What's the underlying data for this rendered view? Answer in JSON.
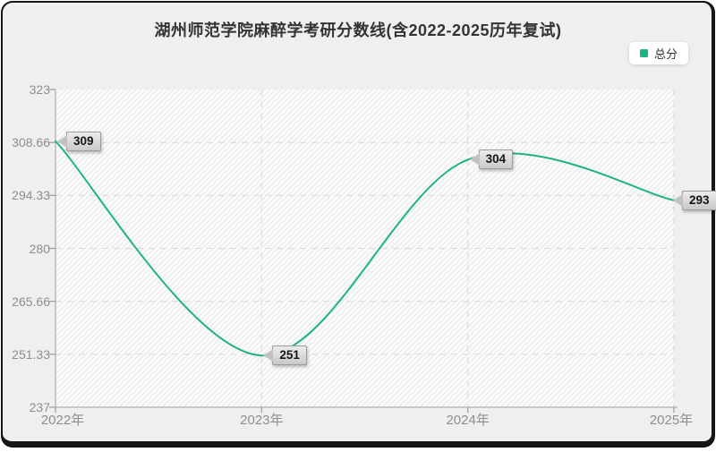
{
  "chart_data": {
    "type": "line",
    "title": "湖州师范学院麻醉学考研分数线(含2022-2025历年复试)",
    "categories": [
      "2022年",
      "2023年",
      "2024年",
      "2025年"
    ],
    "series": [
      {
        "name": "总分",
        "values": [
          309,
          251,
          304,
          293
        ],
        "color": "#1EB287"
      }
    ],
    "data_labels": [
      "309",
      "251",
      "304",
      "293"
    ],
    "xlabel": "",
    "ylabel": "",
    "ylim": [
      237,
      323
    ],
    "y_tick_labels": [
      "237",
      "251.33",
      "265.66",
      "280",
      "294.33",
      "308.66",
      "323"
    ],
    "y_tick_values": [
      237,
      251.33,
      265.66,
      280,
      294.33,
      308.66,
      323
    ],
    "grid": true,
    "smooth": true,
    "legend_position": "top-right"
  },
  "legend": {
    "label": "总分"
  },
  "colors": {
    "accent": "#1EB287",
    "card_background": "#efefef",
    "plot_background": "#fbfbfb",
    "hatch": "#e7e7e7",
    "grid": "#d9d9d9",
    "axis": "#bbbbbb",
    "tick": "#999999",
    "title_text": "#333333",
    "axis_text": "#8e8e8e",
    "badge_background": "#d8d8d8",
    "frame_border": "#161616"
  }
}
